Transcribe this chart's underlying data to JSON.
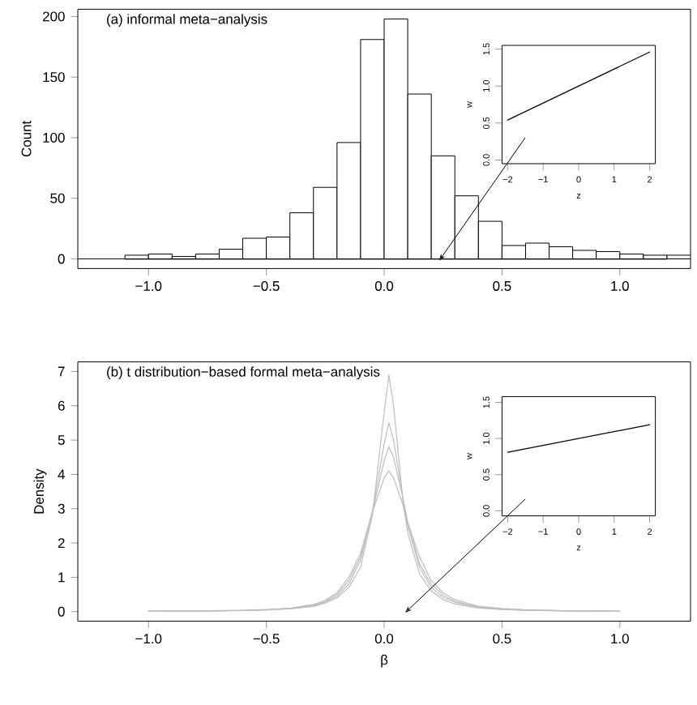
{
  "chart_data": [
    {
      "type": "histogram",
      "title": "(a) informal meta−analysis",
      "ylabel": "Count",
      "color": "#ffffff",
      "bins": [
        -1.1,
        -1.0,
        -0.9,
        -0.8,
        -0.7,
        -0.6,
        -0.5,
        -0.4,
        -0.3,
        -0.2,
        -0.1,
        0,
        0.1,
        0.2,
        0.3,
        0.4,
        0.5,
        0.6,
        0.7,
        0.8,
        0.9,
        1.0,
        1.1,
        1.2,
        1.3
      ],
      "values": [
        3,
        4,
        2,
        4,
        8,
        17,
        18,
        38,
        59,
        96,
        181,
        198,
        136,
        85,
        52,
        31,
        11,
        13,
        10,
        7,
        6,
        4,
        3,
        3
      ],
      "xlim": [
        -1.3,
        1.3
      ],
      "ylim": [
        -8,
        206
      ],
      "xticks": [
        {
          "value": -1,
          "label": "−1.0"
        },
        {
          "value": -0.5,
          "label": "−0.5"
        },
        {
          "value": 0,
          "label": "0.0"
        },
        {
          "value": 0.5,
          "label": "0.5"
        },
        {
          "value": 1,
          "label": "1.0"
        }
      ],
      "yticks": [
        0,
        50,
        100,
        150,
        200
      ],
      "ref_lines": [
        {
          "axis": "y",
          "value": 0,
          "color": "#000000"
        }
      ]
    },
    {
      "type": "line",
      "xlabel": "z",
      "ylabel": "w",
      "x": [
        -2,
        2
      ],
      "values": [
        0.54,
        1.46
      ],
      "color": "#000000",
      "xlim": [
        -2.16,
        2.16
      ],
      "ylim": [
        -0.05,
        1.55
      ],
      "xticks": [
        {
          "value": -2,
          "label": "−2"
        },
        {
          "value": -1,
          "label": "−1"
        },
        0,
        1,
        2
      ],
      "yticks": [
        {
          "value": 0,
          "label": "0.0"
        },
        {
          "value": 0.5,
          "label": "0.5"
        },
        {
          "value": 1,
          "label": "1.0"
        },
        {
          "value": 1.5,
          "label": "1.5"
        }
      ]
    },
    {
      "type": "line",
      "title": "(b) t distribution−based formal meta−analysis",
      "xlabel": "β",
      "ylabel": "Density",
      "x": [
        -1,
        -0.8,
        -0.6,
        -0.5,
        -0.4,
        -0.3,
        -0.25,
        -0.2,
        -0.15,
        -0.1,
        -0.05,
        0,
        0.02,
        0.04,
        0.08,
        0.1,
        0.15,
        0.2,
        0.25,
        0.3,
        0.4,
        0.5,
        0.6,
        0.8,
        1
      ],
      "series": [
        {
          "color": "#bebebe",
          "values": [
            0.01,
            0.02,
            0.03,
            0.05,
            0.08,
            0.15,
            0.25,
            0.4,
            0.7,
            1.3,
            2.8,
            5.8,
            6.9,
            6.0,
            3.2,
            2.3,
            1.1,
            0.6,
            0.35,
            0.22,
            0.1,
            0.06,
            0.04,
            0.02,
            0.01
          ]
        },
        {
          "color": "#bebebe",
          "values": [
            0.01,
            0.02,
            0.03,
            0.05,
            0.09,
            0.17,
            0.28,
            0.45,
            0.8,
            1.5,
            2.9,
            4.9,
            5.5,
            5.0,
            3.3,
            2.5,
            1.3,
            0.7,
            0.42,
            0.27,
            0.12,
            0.07,
            0.04,
            0.02,
            0.01
          ]
        },
        {
          "color": "#bebebe",
          "values": [
            0.01,
            0.02,
            0.03,
            0.05,
            0.09,
            0.19,
            0.3,
            0.5,
            0.9,
            1.6,
            2.9,
            4.4,
            4.8,
            4.5,
            3.3,
            2.6,
            1.4,
            0.8,
            0.48,
            0.3,
            0.14,
            0.08,
            0.05,
            0.02,
            0.01
          ]
        },
        {
          "color": "#bebebe",
          "values": [
            0.01,
            0.02,
            0.04,
            0.06,
            0.1,
            0.21,
            0.33,
            0.55,
            1.0,
            1.7,
            2.9,
            3.9,
            4.1,
            3.9,
            3.1,
            2.6,
            1.6,
            0.9,
            0.55,
            0.35,
            0.16,
            0.09,
            0.05,
            0.02,
            0.01
          ]
        }
      ],
      "xlim": [
        -1.3,
        1.3
      ],
      "ylim": [
        -0.28,
        7.28
      ],
      "xticks": [
        {
          "value": -1,
          "label": "−1.0"
        },
        {
          "value": -0.5,
          "label": "−0.5"
        },
        {
          "value": 0,
          "label": "0.0"
        },
        {
          "value": 0.5,
          "label": "0.5"
        },
        {
          "value": 1,
          "label": "1.0"
        }
      ],
      "yticks": [
        0,
        1,
        2,
        3,
        4,
        5,
        6,
        7
      ]
    },
    {
      "type": "line",
      "xlabel": "z",
      "ylabel": "w",
      "x": [
        -2,
        2
      ],
      "values": [
        0.81,
        1.19
      ],
      "color": "#000000",
      "xlim": [
        -2.16,
        2.16
      ],
      "ylim": [
        -0.07,
        1.58
      ],
      "xticks": [
        {
          "value": -2,
          "label": "−2"
        },
        {
          "value": -1,
          "label": "−1"
        },
        0,
        1,
        2
      ],
      "yticks": [
        {
          "value": 0,
          "label": "0.0"
        },
        {
          "value": 0.5,
          "label": "0.5"
        },
        {
          "value": 1,
          "label": "1.0"
        },
        {
          "value": 1.5,
          "label": "1.5"
        }
      ]
    }
  ]
}
